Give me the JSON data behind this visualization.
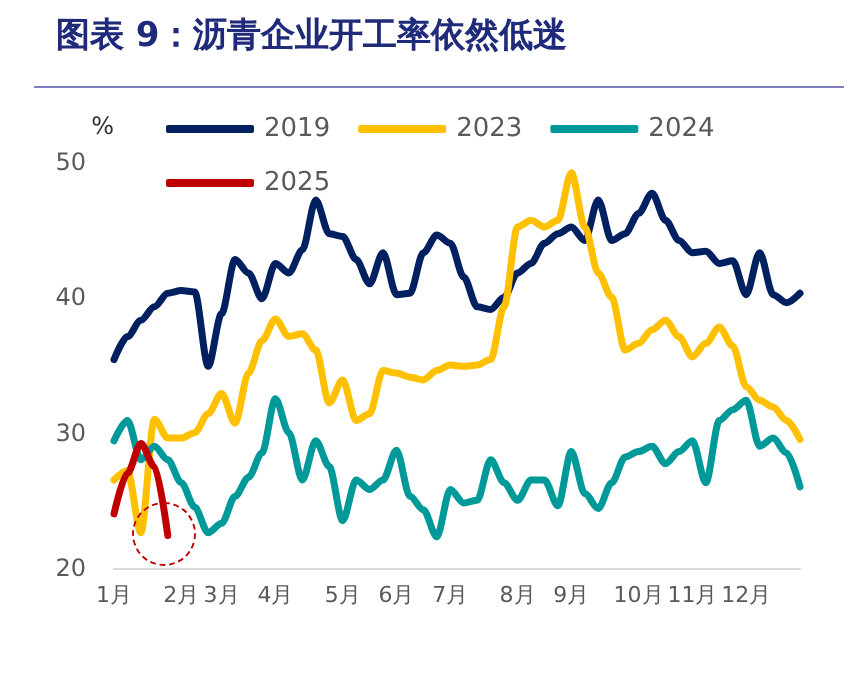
{
  "chart_data": {
    "type": "line",
    "title": "图表 9：沥青企业开工率依然低迷",
    "ylabel": "%",
    "categories": [
      "1月",
      null,
      null,
      null,
      null,
      "2月",
      null,
      null,
      "3月",
      null,
      null,
      null,
      "4月",
      null,
      null,
      null,
      null,
      "5月",
      null,
      null,
      null,
      "6月",
      null,
      null,
      null,
      "7月",
      null,
      null,
      null,
      null,
      "8月",
      null,
      null,
      null,
      "9月",
      null,
      null,
      null,
      null,
      "10月",
      null,
      null,
      null,
      "11月",
      null,
      null,
      null,
      "12月",
      null,
      null,
      null,
      null
    ],
    "ylim": [
      20,
      50
    ],
    "yticks": [
      20,
      30,
      40,
      50
    ],
    "series": [
      {
        "name": "2019",
        "color": "#002060",
        "values": [
          35.4,
          37.1,
          38.3,
          39.3,
          40.3,
          40.5,
          40.4,
          34.9,
          38.8,
          42.8,
          41.8,
          39.9,
          42.5,
          41.8,
          43.5,
          47.2,
          44.7,
          44.5,
          42.8,
          41.0,
          43.3,
          40.2,
          40.3,
          43.3,
          44.6,
          44.0,
          41.5,
          39.3,
          39.1,
          40.0,
          41.8,
          42.5,
          44.0,
          44.7,
          45.2,
          44.2,
          47.2,
          44.2,
          44.7,
          46.2,
          47.7,
          45.7,
          44.2,
          43.3,
          43.4,
          42.5,
          42.7,
          40.2,
          43.3,
          40.2,
          39.6,
          40.3
        ]
      },
      {
        "name": "2023",
        "color": "#ffc000",
        "values": [
          26.5,
          27.2,
          22.6,
          31.0,
          29.6,
          29.6,
          30.0,
          31.4,
          32.9,
          30.7,
          34.4,
          36.8,
          38.4,
          37.1,
          37.3,
          36.1,
          32.2,
          33.9,
          30.9,
          31.4,
          34.6,
          34.4,
          34.1,
          33.9,
          34.6,
          35.0,
          34.9,
          35.0,
          35.4,
          39.3,
          45.2,
          45.7,
          45.2,
          45.7,
          49.2,
          45.2,
          41.8,
          40.0,
          36.1,
          36.6,
          37.6,
          38.3,
          37.1,
          35.6,
          36.6,
          37.8,
          36.4,
          33.4,
          32.4,
          31.9,
          30.9,
          29.5
        ]
      },
      {
        "name": "2024",
        "color": "#009999",
        "values": [
          29.4,
          30.9,
          28.0,
          29.0,
          28.0,
          26.3,
          24.5,
          22.6,
          23.3,
          25.3,
          26.7,
          28.5,
          32.5,
          30.0,
          26.5,
          29.4,
          27.5,
          23.5,
          26.5,
          25.8,
          26.5,
          28.7,
          25.3,
          24.3,
          22.3,
          25.8,
          24.8,
          25.0,
          28.0,
          26.3,
          25.0,
          26.5,
          26.5,
          24.6,
          28.6,
          25.5,
          24.4,
          26.3,
          28.2,
          28.6,
          29.0,
          27.7,
          28.6,
          29.4,
          26.3,
          30.9,
          31.7,
          32.4,
          29.0,
          29.6,
          28.5,
          26.0
        ]
      },
      {
        "name": "2025",
        "color": "#c00000",
        "values": [
          24.0,
          27.0,
          29.2,
          27.5,
          22.4,
          null,
          null,
          null,
          null,
          null,
          null,
          null,
          null,
          null,
          null,
          null,
          null,
          null,
          null,
          null,
          null,
          null,
          null,
          null,
          null,
          null,
          null,
          null,
          null,
          null,
          null,
          null,
          null,
          null,
          null,
          null,
          null,
          null,
          null,
          null,
          null,
          null,
          null,
          null,
          null,
          null,
          null,
          null,
          null,
          null,
          null,
          null
        ]
      }
    ],
    "legend": "top",
    "grid": false,
    "marker": "none",
    "line_style": "solid"
  }
}
